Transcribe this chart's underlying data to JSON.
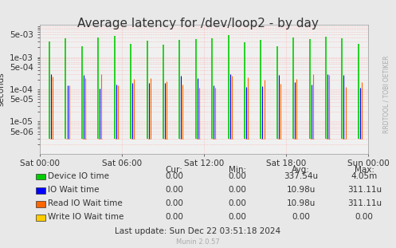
{
  "title": "Average latency for /dev/loop2 - by day",
  "ylabel": "seconds",
  "background_color": "#e8e8e8",
  "plot_bg_color": "#f0f0f0",
  "grid_color": "#ff9999",
  "ylim_min": 1e-06,
  "ylim_max": 0.01,
  "yticks": [
    5e-06,
    1e-05,
    5e-05,
    0.0001,
    0.0005,
    0.001,
    0.005
  ],
  "ytick_labels": [
    "5e-06",
    "1e-05",
    "5e-05",
    "1e-04",
    "5e-04",
    "1e-03",
    "5e-03"
  ],
  "xtick_labels": [
    "Sat 00:00",
    "Sat 06:00",
    "Sat 12:00",
    "Sat 18:00",
    "Sun 00:00"
  ],
  "series": [
    {
      "name": "Device IO time",
      "color": "#00cc00",
      "spike_positions": [
        0.04,
        0.09,
        0.14,
        0.18,
        0.23,
        0.27,
        0.32,
        0.36,
        0.41,
        0.45,
        0.5,
        0.54,
        0.59,
        0.63,
        0.68,
        0.72,
        0.77,
        0.82,
        0.86,
        0.91,
        0.95
      ],
      "spike_heights": [
        0.0028,
        0.0028,
        0.0045,
        0.003,
        0.0028,
        0.0045,
        0.0045,
        0.0028,
        0.0028,
        0.0045,
        0.0028,
        0.0028,
        0.0045,
        0.0045,
        0.0028,
        0.0028,
        0.0045,
        0.0045,
        0.0028,
        0.0028,
        0.0045
      ]
    },
    {
      "name": "IO Wait time",
      "color": "#0000ff",
      "spike_positions": [
        0.042,
        0.092,
        0.142,
        0.182,
        0.232,
        0.272,
        0.322,
        0.362,
        0.412,
        0.452,
        0.502,
        0.542,
        0.592,
        0.632,
        0.682,
        0.722,
        0.772,
        0.822,
        0.862,
        0.912,
        0.952
      ],
      "spike_heights": [
        0.00025,
        0.00025,
        0.00025,
        0.00025,
        0.00025,
        0.00025,
        0.00025,
        0.00025,
        0.00025,
        0.00025,
        0.00025,
        0.00025,
        0.00025,
        0.00025,
        0.00025,
        0.00025,
        0.00025,
        0.00025,
        0.00025,
        0.00025,
        0.00025
      ]
    },
    {
      "name": "Read IO Wait time",
      "color": "#ff6600",
      "spike_positions": [
        0.043,
        0.093,
        0.143,
        0.183,
        0.233,
        0.273,
        0.323,
        0.363,
        0.413,
        0.453,
        0.503,
        0.543,
        0.593,
        0.633,
        0.683,
        0.723,
        0.773,
        0.823,
        0.863,
        0.913,
        0.953
      ],
      "spike_heights": [
        0.00025,
        0.00025,
        0.00045,
        0.00025,
        0.00025,
        0.0005,
        0.00025,
        0.00025,
        0.00035,
        0.00025,
        0.00025,
        0.00025,
        0.00025,
        0.00025,
        0.00025,
        0.00025,
        0.0001,
        0.00025,
        0.00025,
        0.00025,
        0.00025
      ]
    },
    {
      "name": "Write IO Wait time",
      "color": "#ffcc00",
      "spike_positions": [],
      "spike_heights": []
    }
  ],
  "legend_table": {
    "headers": [
      "Cur:",
      "Min:",
      "Avg:",
      "Max:"
    ],
    "rows": [
      [
        "Device IO time",
        "0.00",
        "0.00",
        "337.54u",
        "4.05m"
      ],
      [
        "IO Wait time",
        "0.00",
        "0.00",
        "10.98u",
        "311.11u"
      ],
      [
        "Read IO Wait time",
        "0.00",
        "0.00",
        "10.98u",
        "311.11u"
      ],
      [
        "Write IO Wait time",
        "0.00",
        "0.00",
        "0.00",
        "0.00"
      ]
    ]
  },
  "footer": "Last update: Sun Dec 22 03:51:18 2024",
  "munin_version": "Munin 2.0.57",
  "rrdtool_label": "RRDTOOL / TOBI OETIKER",
  "title_fontsize": 11,
  "axis_fontsize": 7.5,
  "legend_fontsize": 7.5
}
